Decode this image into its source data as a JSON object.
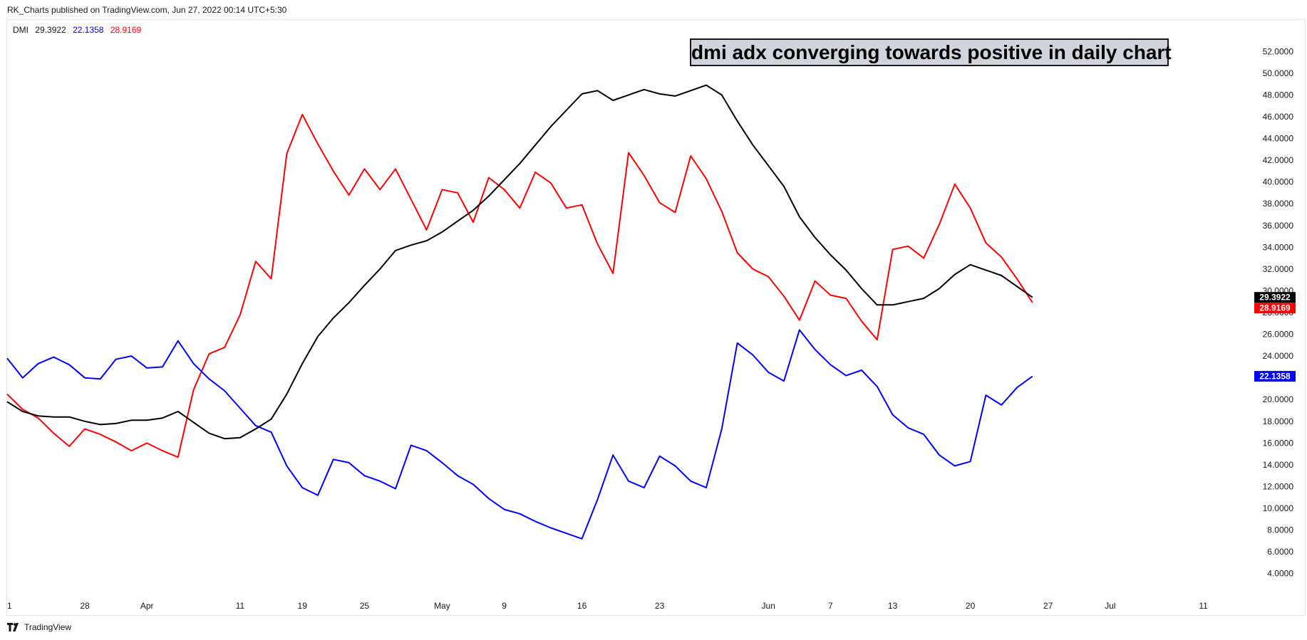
{
  "header": {
    "text": "RK_Charts published on TradingView.com, Jun 27, 2022 00:14 UTC+5:30"
  },
  "legend": {
    "name": "DMI",
    "adx": "29.3922",
    "plus_di": "22.1358",
    "minus_di": "28.9169"
  },
  "annotation": {
    "text": "dmi adx converging towards positive in daily chart"
  },
  "footer": {
    "brand": "TradingView",
    "logo_icon": "tradingview-logo-icon"
  },
  "colors": {
    "adx": "#000000",
    "plus_di": "#0000ff",
    "minus_di": "#ff0000",
    "text": "#131722",
    "border": "#e0e3eb"
  },
  "chart_data": {
    "type": "line",
    "title": "",
    "xlabel": "",
    "ylabel": "",
    "ylim": [
      3.0,
      53.0
    ],
    "y_ticks": [
      "52.0000",
      "50.0000",
      "48.0000",
      "46.0000",
      "44.0000",
      "42.0000",
      "40.0000",
      "38.0000",
      "36.0000",
      "34.0000",
      "32.0000",
      "30.0000",
      "28.0000",
      "26.0000",
      "24.0000",
      "22.0000",
      "20.0000",
      "18.0000",
      "16.0000",
      "14.0000",
      "12.0000",
      "10.0000",
      "8.0000",
      "6.0000",
      "4.0000"
    ],
    "x_ticks": [
      {
        "label": "1",
        "index": 0
      },
      {
        "label": "28",
        "index": 5
      },
      {
        "label": "Apr",
        "index": 9
      },
      {
        "label": "11",
        "index": 15
      },
      {
        "label": "19",
        "index": 19
      },
      {
        "label": "25",
        "index": 23
      },
      {
        "label": "May",
        "index": 28
      },
      {
        "label": "9",
        "index": 32
      },
      {
        "label": "16",
        "index": 37
      },
      {
        "label": "23",
        "index": 42
      },
      {
        "label": "Jun",
        "index": 49
      },
      {
        "label": "7",
        "index": 53
      },
      {
        "label": "13",
        "index": 57
      },
      {
        "label": "20",
        "index": 62
      },
      {
        "label": "27",
        "index": 67
      },
      {
        "label": "Jul",
        "index": 71
      },
      {
        "label": "11",
        "index": 77
      }
    ],
    "series": [
      {
        "key": "adx",
        "values": [
          19.8,
          18.9,
          18.5,
          18.4,
          18.4,
          18.0,
          17.7,
          17.8,
          18.1,
          18.1,
          18.3,
          18.9,
          17.9,
          16.9,
          16.4,
          16.5,
          17.3,
          18.2,
          20.5,
          23.3,
          25.8,
          27.5,
          28.9,
          30.5,
          32.0,
          33.7,
          34.2,
          34.6,
          35.4,
          36.4,
          37.4,
          38.7,
          40.2,
          41.7,
          43.4,
          45.1,
          46.6,
          48.1,
          48.4,
          47.5,
          48.0,
          48.5,
          48.1,
          47.9,
          48.4,
          48.9,
          48.0,
          45.6,
          43.4,
          41.5,
          39.6,
          36.8,
          34.9,
          33.3,
          31.9,
          30.2,
          28.7,
          28.7,
          29.0,
          29.3,
          30.2,
          31.5,
          32.4,
          31.9,
          31.4,
          30.4,
          29.3922
        ]
      },
      {
        "key": "plus_di",
        "values": [
          23.8,
          22.0,
          23.3,
          23.9,
          23.2,
          22.0,
          21.9,
          23.7,
          24.0,
          22.9,
          23.0,
          25.4,
          23.3,
          21.9,
          20.8,
          19.2,
          17.6,
          17.0,
          13.9,
          11.9,
          11.2,
          14.5,
          14.2,
          13.0,
          12.5,
          11.8,
          15.8,
          15.3,
          14.2,
          13.0,
          12.2,
          10.9,
          9.9,
          9.5,
          8.8,
          8.2,
          7.7,
          7.2,
          10.8,
          14.9,
          12.5,
          11.9,
          14.8,
          13.9,
          12.5,
          11.9,
          17.3,
          25.2,
          24.1,
          22.5,
          21.7,
          26.4,
          24.6,
          23.2,
          22.2,
          22.7,
          21.2,
          18.6,
          17.4,
          16.8,
          14.9,
          13.9,
          14.3,
          20.4,
          19.5,
          21.1,
          22.1358
        ]
      },
      {
        "key": "minus_di",
        "values": [
          20.5,
          19.1,
          18.3,
          16.9,
          15.7,
          17.3,
          16.8,
          16.1,
          15.3,
          16.0,
          15.3,
          14.7,
          20.9,
          24.2,
          24.8,
          27.8,
          32.7,
          31.1,
          42.6,
          46.2,
          43.5,
          41.0,
          38.8,
          41.2,
          39.3,
          41.2,
          38.4,
          35.6,
          39.3,
          39.0,
          36.3,
          40.4,
          39.3,
          37.6,
          40.9,
          39.9,
          37.6,
          37.9,
          34.3,
          31.6,
          42.7,
          40.6,
          38.1,
          37.2,
          42.4,
          40.3,
          37.3,
          33.5,
          32.0,
          31.3,
          29.5,
          27.3,
          30.9,
          29.6,
          29.3,
          27.2,
          25.5,
          33.8,
          34.1,
          33.0,
          36.1,
          39.8,
          37.6,
          34.4,
          33.1,
          31.1,
          28.9169
        ]
      }
    ]
  }
}
